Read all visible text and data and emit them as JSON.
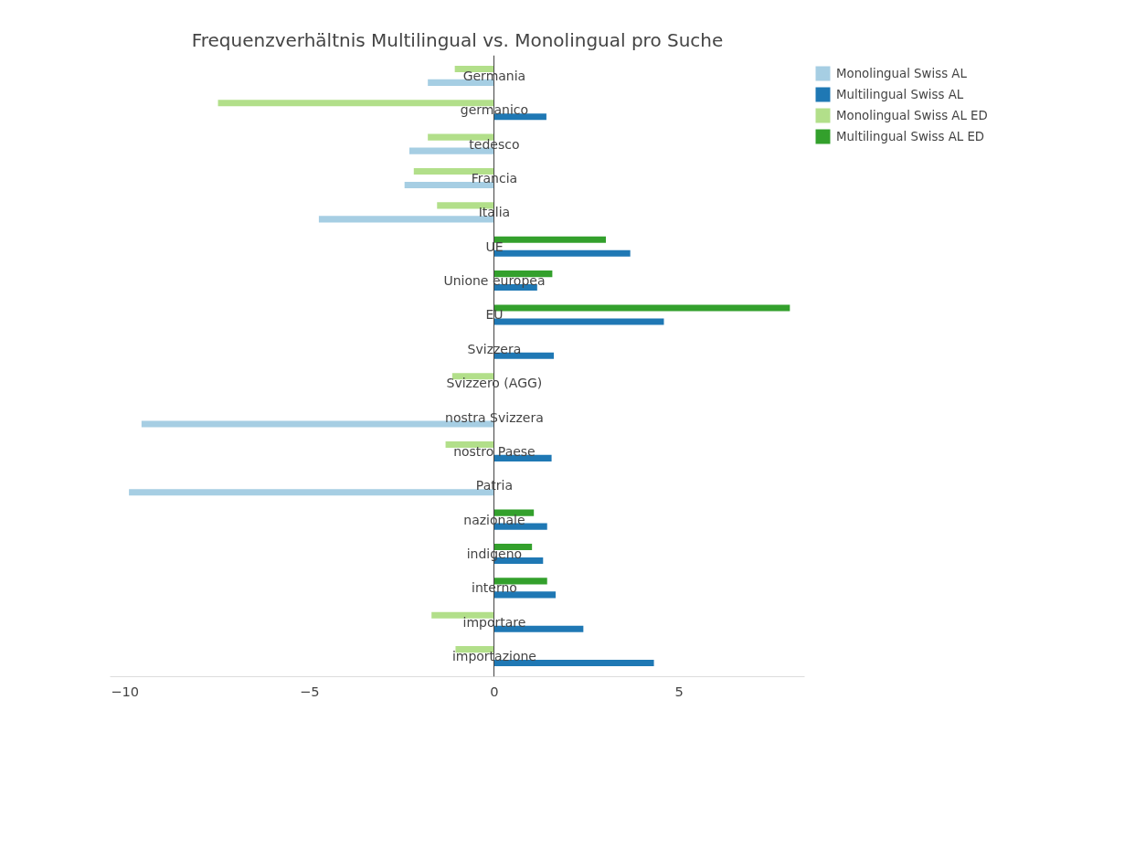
{
  "chart_data": {
    "type": "bar",
    "orientation": "horizontal",
    "title": "Frequenzverhältnis Multilingual vs. Monolingual pro Suche",
    "categories": [
      "Germania",
      "germanico",
      "tedesco",
      "Francia",
      "Italia",
      "UE",
      "Unione europea",
      "EU",
      "Svizzera",
      "Svizzero (AGG)",
      "nostra Svizzera",
      "nostro Paese",
      "Patria",
      "nazionale",
      "indigeno",
      "interno",
      "importare",
      "importazione"
    ],
    "series": [
      {
        "name": "Monolingual Swiss AL",
        "color": "#a6cee3",
        "values": [
          -1.8,
          null,
          -2.3,
          -2.43,
          -4.75,
          null,
          null,
          null,
          null,
          null,
          -9.55,
          null,
          -9.89,
          null,
          null,
          null,
          null,
          null
        ]
      },
      {
        "name": "Multilingual Swiss AL",
        "color": "#1f78b4",
        "values": [
          null,
          1.41,
          null,
          null,
          null,
          3.68,
          1.16,
          4.59,
          1.61,
          null,
          null,
          1.55,
          null,
          1.43,
          1.32,
          1.66,
          2.41,
          4.32
        ]
      },
      {
        "name": "Monolingual Swiss AL ED",
        "color": "#b2df8a",
        "values": [
          -1.07,
          -7.48,
          -1.8,
          -2.18,
          -1.55,
          null,
          null,
          null,
          null,
          -1.14,
          null,
          -1.32,
          null,
          null,
          null,
          null,
          -1.7,
          -1.05
        ]
      },
      {
        "name": "Multilingual Swiss AL ED",
        "color": "#33a02c",
        "values": [
          null,
          null,
          null,
          null,
          null,
          3.02,
          1.57,
          8.0,
          null,
          null,
          null,
          null,
          null,
          1.07,
          1.02,
          1.43,
          null,
          null
        ]
      }
    ],
    "xlim": [
      -10.4,
      8.4
    ],
    "xticks": [
      {
        "value": -10,
        "label": "−10"
      },
      {
        "value": -5,
        "label": "−5"
      },
      0,
      5
    ],
    "grid": false,
    "legend": "top right"
  }
}
